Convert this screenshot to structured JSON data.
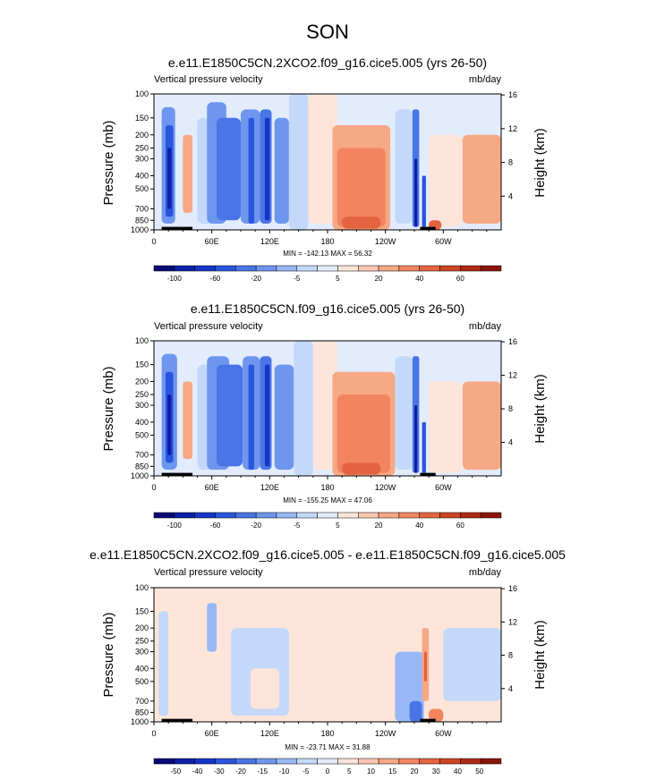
{
  "figure": {
    "title": "SON"
  },
  "colors": {
    "blue_to_red": [
      "#080a7a",
      "#0d1fa6",
      "#1636c9",
      "#2a55dd",
      "#4a75e6",
      "#6f96ee",
      "#98b8f5",
      "#c4d8fa",
      "#e2ecfd",
      "#fde5da",
      "#fbc9b2",
      "#f7a885",
      "#f28560",
      "#e4643f",
      "#cc4524",
      "#ad2b14",
      "#8b140a"
    ],
    "topography": "#000000"
  },
  "chart_data": [
    {
      "type": "heatmap",
      "title": "e.e11.E1850C5CN.2XCO2.f09_g16.cice5.005 (yrs 26-50)",
      "left_string": "Vertical pressure velocity",
      "right_string": "mb/day",
      "ylabel": "Pressure (mb)",
      "ylabel_right": "Height (km)",
      "x_ticks": [
        "0",
        "60E",
        "120E",
        "180",
        "120W",
        "60W"
      ],
      "y_ticks": [
        "100",
        "150",
        "200",
        "250",
        "300",
        "400",
        "500",
        "700",
        "850",
        "1000"
      ],
      "y_right_ticks": [
        "16",
        "12",
        "8",
        "4"
      ],
      "min_max": "MIN = -142.13  MAX = 56.32",
      "colorbar_labels": [
        "-100",
        "-60",
        "-20",
        "-5",
        "5",
        "20",
        "40",
        "60"
      ],
      "ylim": [
        1000,
        100
      ],
      "xlim": [
        0,
        360
      ],
      "grid": false,
      "pattern": "full",
      "cells": [
        {
          "lon": [
            8,
            22
          ],
          "p": [
            125,
            900
          ],
          "v": -20
        },
        {
          "lon": [
            12,
            20
          ],
          "p": [
            170,
            800
          ],
          "v": -60
        },
        {
          "lon": [
            14,
            18
          ],
          "p": [
            250,
            700
          ],
          "v": -100
        },
        {
          "lon": [
            30,
            40
          ],
          "p": [
            200,
            750
          ],
          "v": 20
        },
        {
          "lon": [
            45,
            62
          ],
          "p": [
            150,
            900
          ],
          "v": -5
        },
        {
          "lon": [
            55,
            75
          ],
          "p": [
            115,
            900
          ],
          "v": -20
        },
        {
          "lon": [
            65,
            90
          ],
          "p": [
            150,
            850
          ],
          "v": -40
        },
        {
          "lon": [
            90,
            110
          ],
          "p": [
            130,
            900
          ],
          "v": -20
        },
        {
          "lon": [
            98,
            104
          ],
          "p": [
            150,
            900
          ],
          "v": -60
        },
        {
          "lon": [
            110,
            122
          ],
          "p": [
            130,
            900
          ],
          "v": -40
        },
        {
          "lon": [
            115,
            120
          ],
          "p": [
            150,
            850
          ],
          "v": -80
        },
        {
          "lon": [
            125,
            140
          ],
          "p": [
            150,
            900
          ],
          "v": -20
        },
        {
          "lon": [
            140,
            160
          ],
          "p": [
            100,
            1000
          ],
          "v": -5
        },
        {
          "lon": [
            160,
            190
          ],
          "p": [
            100,
            900
          ],
          "v": 5
        },
        {
          "lon": [
            185,
            245
          ],
          "p": [
            170,
            1000
          ],
          "v": 20
        },
        {
          "lon": [
            190,
            240
          ],
          "p": [
            250,
            950
          ],
          "v": 30
        },
        {
          "lon": [
            195,
            235
          ],
          "p": [
            800,
            980
          ],
          "v": 40
        },
        {
          "lon": [
            250,
            268
          ],
          "p": [
            130,
            900
          ],
          "v": -5
        },
        {
          "lon": [
            268,
            275
          ],
          "p": [
            130,
            950
          ],
          "v": -40
        },
        {
          "lon": [
            270,
            273
          ],
          "p": [
            300,
            950
          ],
          "v": -100
        },
        {
          "lon": [
            278,
            282
          ],
          "p": [
            400,
            950
          ],
          "v": -60
        },
        {
          "lon": [
            285,
            320
          ],
          "p": [
            200,
            950
          ],
          "v": 5
        },
        {
          "lon": [
            320,
            360
          ],
          "p": [
            200,
            900
          ],
          "v": 20
        },
        {
          "lon": [
            285,
            298
          ],
          "p": [
            850,
            1000
          ],
          "v": 40
        }
      ]
    },
    {
      "type": "heatmap",
      "title": "e.e11.E1850C5CN.f09_g16.cice5.005 (yrs 26-50)",
      "left_string": "Vertical pressure velocity",
      "right_string": "mb/day",
      "ylabel": "Pressure (mb)",
      "ylabel_right": "Height (km)",
      "x_ticks": [
        "0",
        "60E",
        "120E",
        "180",
        "120W",
        "60W"
      ],
      "y_ticks": [
        "100",
        "150",
        "200",
        "250",
        "300",
        "400",
        "500",
        "700",
        "850",
        "1000"
      ],
      "y_right_ticks": [
        "16",
        "12",
        "8",
        "4"
      ],
      "min_max": "MIN = -155.25  MAX = 47.06",
      "colorbar_labels": [
        "-100",
        "-60",
        "-20",
        "-5",
        "5",
        "20",
        "40",
        "60"
      ],
      "ylim": [
        1000,
        100
      ],
      "xlim": [
        0,
        360
      ],
      "grid": false,
      "pattern": "full",
      "cells": [
        {
          "lon": [
            8,
            24
          ],
          "p": [
            125,
            900
          ],
          "v": -20
        },
        {
          "lon": [
            12,
            20
          ],
          "p": [
            170,
            800
          ],
          "v": -60
        },
        {
          "lon": [
            14,
            18
          ],
          "p": [
            250,
            700
          ],
          "v": -100
        },
        {
          "lon": [
            30,
            40
          ],
          "p": [
            200,
            750
          ],
          "v": 20
        },
        {
          "lon": [
            45,
            62
          ],
          "p": [
            150,
            900
          ],
          "v": -5
        },
        {
          "lon": [
            55,
            78
          ],
          "p": [
            130,
            900
          ],
          "v": -20
        },
        {
          "lon": [
            65,
            92
          ],
          "p": [
            150,
            850
          ],
          "v": -40
        },
        {
          "lon": [
            92,
            110
          ],
          "p": [
            130,
            900
          ],
          "v": -20
        },
        {
          "lon": [
            98,
            104
          ],
          "p": [
            150,
            900
          ],
          "v": -60
        },
        {
          "lon": [
            110,
            122
          ],
          "p": [
            130,
            900
          ],
          "v": -40
        },
        {
          "lon": [
            115,
            120
          ],
          "p": [
            150,
            850
          ],
          "v": -80
        },
        {
          "lon": [
            125,
            145
          ],
          "p": [
            150,
            900
          ],
          "v": -20
        },
        {
          "lon": [
            145,
            165
          ],
          "p": [
            100,
            1000
          ],
          "v": -5
        },
        {
          "lon": [
            165,
            190
          ],
          "p": [
            100,
            900
          ],
          "v": 5
        },
        {
          "lon": [
            185,
            250
          ],
          "p": [
            170,
            1000
          ],
          "v": 20
        },
        {
          "lon": [
            190,
            245
          ],
          "p": [
            250,
            950
          ],
          "v": 30
        },
        {
          "lon": [
            195,
            235
          ],
          "p": [
            800,
            980
          ],
          "v": 40
        },
        {
          "lon": [
            250,
            268
          ],
          "p": [
            130,
            900
          ],
          "v": -5
        },
        {
          "lon": [
            268,
            275
          ],
          "p": [
            130,
            950
          ],
          "v": -40
        },
        {
          "lon": [
            270,
            273
          ],
          "p": [
            300,
            950
          ],
          "v": -100
        },
        {
          "lon": [
            278,
            282
          ],
          "p": [
            400,
            950
          ],
          "v": -60
        },
        {
          "lon": [
            285,
            320
          ],
          "p": [
            200,
            950
          ],
          "v": 5
        },
        {
          "lon": [
            320,
            360
          ],
          "p": [
            200,
            900
          ],
          "v": 20
        }
      ]
    },
    {
      "type": "heatmap",
      "title": "e.e11.E1850C5CN.2XCO2.f09_g16.cice5.005 - e.e11.E1850C5CN.f09_g16.cice5.005",
      "left_string": "Vertical pressure velocity",
      "right_string": "mb/day",
      "ylabel": "Pressure (mb)",
      "ylabel_right": "Height (km)",
      "x_ticks": [
        "0",
        "60E",
        "120E",
        "180",
        "120W",
        "60W"
      ],
      "y_ticks": [
        "100",
        "150",
        "200",
        "250",
        "300",
        "400",
        "500",
        "700",
        "850",
        "1000"
      ],
      "y_right_ticks": [
        "16",
        "12",
        "8",
        "4"
      ],
      "min_max": "MIN = -23.71  MAX = 31.88",
      "colorbar_labels": [
        "-50",
        "-40",
        "-30",
        "-20",
        "-15",
        "-10",
        "-5",
        "0",
        "5",
        "10",
        "15",
        "20",
        "30",
        "40",
        "50"
      ],
      "ylim": [
        1000,
        100
      ],
      "xlim": [
        0,
        360
      ],
      "grid": false,
      "pattern": "diff",
      "cells": [
        {
          "lon": [
            0,
            360
          ],
          "p": [
            100,
            1000
          ],
          "v": 2
        },
        {
          "lon": [
            5,
            15
          ],
          "p": [
            150,
            900
          ],
          "v": -3
        },
        {
          "lon": [
            15,
            25
          ],
          "p": [
            300,
            700
          ],
          "v": 5
        },
        {
          "lon": [
            50,
            80
          ],
          "p": [
            300,
            700
          ],
          "v": 5
        },
        {
          "lon": [
            55,
            65
          ],
          "p": [
            130,
            300
          ],
          "v": -5
        },
        {
          "lon": [
            80,
            140
          ],
          "p": [
            200,
            900
          ],
          "v": -3
        },
        {
          "lon": [
            100,
            130
          ],
          "p": [
            400,
            800
          ],
          "v": 5
        },
        {
          "lon": [
            140,
            160
          ],
          "p": [
            500,
            900
          ],
          "v": 3
        },
        {
          "lon": [
            160,
            250
          ],
          "p": [
            100,
            1000
          ],
          "v": 2
        },
        {
          "lon": [
            250,
            280
          ],
          "p": [
            300,
            1000
          ],
          "v": -5
        },
        {
          "lon": [
            265,
            278
          ],
          "p": [
            700,
            1000
          ],
          "v": -15
        },
        {
          "lon": [
            278,
            285
          ],
          "p": [
            200,
            700
          ],
          "v": 15
        },
        {
          "lon": [
            280,
            283
          ],
          "p": [
            300,
            500
          ],
          "v": 25
        },
        {
          "lon": [
            285,
            300
          ],
          "p": [
            800,
            1000
          ],
          "v": 20
        },
        {
          "lon": [
            300,
            360
          ],
          "p": [
            200,
            700
          ],
          "v": -3
        }
      ]
    }
  ]
}
